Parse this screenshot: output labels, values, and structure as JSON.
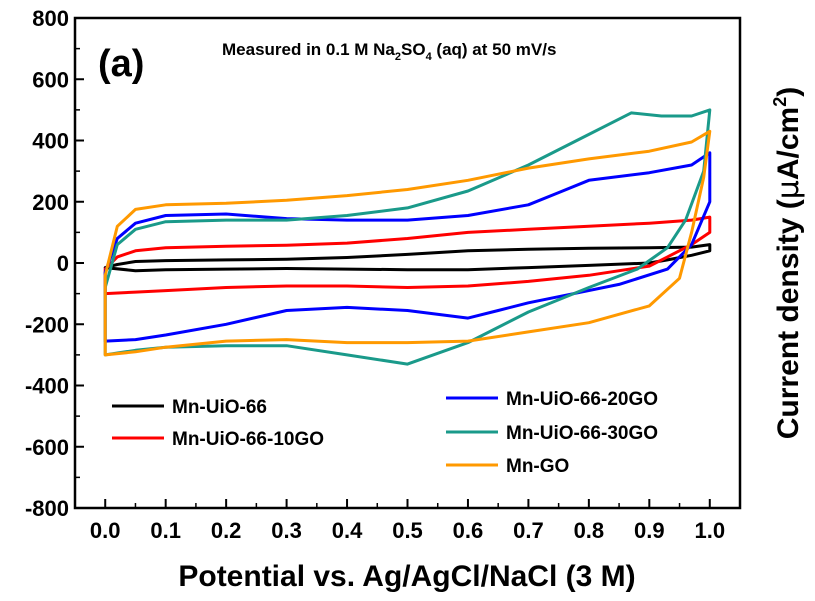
{
  "chart_data": {
    "type": "line",
    "panel_label": "(a)",
    "annotation": {
      "prefix": "Measured in 0.1 M Na",
      "sub1": "2",
      "mid": "SO",
      "sub2": "4",
      "suffix": " (aq) at 50 mV/s"
    },
    "xlabel": "Potential vs. Ag/AgCl/NaCl (3 M)",
    "ylabel": {
      "main": "Current density (",
      "mu": "μ",
      "unit": "A/cm",
      "sup": "2",
      "close": ")"
    },
    "xlim": [
      -0.05,
      1.05
    ],
    "ylim": [
      -800,
      800
    ],
    "x_ticks": [
      "0.0",
      "0.1",
      "0.2",
      "0.3",
      "0.4",
      "0.5",
      "0.6",
      "0.7",
      "0.8",
      "0.9",
      "1.0"
    ],
    "y_ticks": [
      "800",
      "600",
      "400",
      "200",
      "0",
      "-200",
      "-400",
      "-600",
      "-800"
    ],
    "legend_placement": "bottom",
    "series": [
      {
        "name": "Mn-UiO-66",
        "color": "#000000",
        "points": [
          [
            0.0,
            -15
          ],
          [
            0.02,
            -5
          ],
          [
            0.05,
            5
          ],
          [
            0.1,
            8
          ],
          [
            0.2,
            10
          ],
          [
            0.3,
            12
          ],
          [
            0.4,
            18
          ],
          [
            0.5,
            28
          ],
          [
            0.6,
            40
          ],
          [
            0.7,
            45
          ],
          [
            0.8,
            48
          ],
          [
            0.9,
            50
          ],
          [
            0.97,
            52
          ],
          [
            1.0,
            60
          ],
          [
            1.0,
            40
          ],
          [
            0.97,
            25
          ],
          [
            0.93,
            10
          ],
          [
            0.9,
            0
          ],
          [
            0.8,
            -8
          ],
          [
            0.7,
            -15
          ],
          [
            0.6,
            -22
          ],
          [
            0.5,
            -22
          ],
          [
            0.4,
            -20
          ],
          [
            0.3,
            -18
          ],
          [
            0.2,
            -20
          ],
          [
            0.1,
            -22
          ],
          [
            0.05,
            -25
          ],
          [
            0.0,
            -15
          ]
        ]
      },
      {
        "name": "Mn-UiO-66-10GO",
        "color": "#ff0000",
        "points": [
          [
            0.0,
            -20
          ],
          [
            0.02,
            20
          ],
          [
            0.05,
            40
          ],
          [
            0.1,
            50
          ],
          [
            0.2,
            55
          ],
          [
            0.3,
            58
          ],
          [
            0.4,
            65
          ],
          [
            0.5,
            80
          ],
          [
            0.6,
            100
          ],
          [
            0.7,
            110
          ],
          [
            0.8,
            120
          ],
          [
            0.9,
            130
          ],
          [
            0.97,
            140
          ],
          [
            1.0,
            150
          ],
          [
            1.0,
            100
          ],
          [
            0.97,
            60
          ],
          [
            0.93,
            20
          ],
          [
            0.9,
            -10
          ],
          [
            0.8,
            -40
          ],
          [
            0.7,
            -60
          ],
          [
            0.6,
            -75
          ],
          [
            0.5,
            -80
          ],
          [
            0.4,
            -75
          ],
          [
            0.3,
            -75
          ],
          [
            0.2,
            -80
          ],
          [
            0.1,
            -90
          ],
          [
            0.05,
            -95
          ],
          [
            0.0,
            -100
          ]
        ]
      },
      {
        "name": "Mn-UiO-66-20GO",
        "color": "#0000ff",
        "points": [
          [
            0.0,
            -30
          ],
          [
            0.02,
            80
          ],
          [
            0.05,
            130
          ],
          [
            0.1,
            155
          ],
          [
            0.2,
            160
          ],
          [
            0.3,
            145
          ],
          [
            0.4,
            140
          ],
          [
            0.5,
            140
          ],
          [
            0.6,
            155
          ],
          [
            0.7,
            190
          ],
          [
            0.75,
            230
          ],
          [
            0.8,
            270
          ],
          [
            0.9,
            295
          ],
          [
            0.97,
            320
          ],
          [
            1.0,
            360
          ],
          [
            1.0,
            200
          ],
          [
            0.97,
            60
          ],
          [
            0.93,
            -20
          ],
          [
            0.85,
            -70
          ],
          [
            0.75,
            -110
          ],
          [
            0.7,
            -130
          ],
          [
            0.65,
            -155
          ],
          [
            0.6,
            -180
          ],
          [
            0.5,
            -155
          ],
          [
            0.4,
            -145
          ],
          [
            0.3,
            -155
          ],
          [
            0.2,
            -200
          ],
          [
            0.1,
            -235
          ],
          [
            0.05,
            -250
          ],
          [
            0.0,
            -255
          ]
        ]
      },
      {
        "name": "Mn-UiO-66-30GO",
        "color": "#1a9a8a",
        "points": [
          [
            0.0,
            -80
          ],
          [
            0.02,
            60
          ],
          [
            0.05,
            110
          ],
          [
            0.1,
            135
          ],
          [
            0.2,
            140
          ],
          [
            0.3,
            140
          ],
          [
            0.4,
            155
          ],
          [
            0.5,
            180
          ],
          [
            0.6,
            235
          ],
          [
            0.7,
            320
          ],
          [
            0.8,
            420
          ],
          [
            0.87,
            490
          ],
          [
            0.92,
            480
          ],
          [
            0.97,
            480
          ],
          [
            1.0,
            500
          ],
          [
            0.99,
            300
          ],
          [
            0.96,
            140
          ],
          [
            0.93,
            50
          ],
          [
            0.88,
            -20
          ],
          [
            0.8,
            -80
          ],
          [
            0.7,
            -160
          ],
          [
            0.6,
            -260
          ],
          [
            0.5,
            -330
          ],
          [
            0.4,
            -300
          ],
          [
            0.3,
            -270
          ],
          [
            0.2,
            -270
          ],
          [
            0.1,
            -275
          ],
          [
            0.05,
            -285
          ],
          [
            0.0,
            -300
          ]
        ]
      },
      {
        "name": "Mn-GO",
        "color": "#ff9900",
        "points": [
          [
            0.0,
            -40
          ],
          [
            0.02,
            120
          ],
          [
            0.05,
            175
          ],
          [
            0.1,
            190
          ],
          [
            0.2,
            195
          ],
          [
            0.3,
            205
          ],
          [
            0.4,
            220
          ],
          [
            0.5,
            240
          ],
          [
            0.6,
            270
          ],
          [
            0.7,
            310
          ],
          [
            0.8,
            340
          ],
          [
            0.9,
            365
          ],
          [
            0.97,
            395
          ],
          [
            1.0,
            430
          ],
          [
            0.99,
            280
          ],
          [
            0.97,
            100
          ],
          [
            0.95,
            -50
          ],
          [
            0.9,
            -140
          ],
          [
            0.8,
            -195
          ],
          [
            0.7,
            -225
          ],
          [
            0.6,
            -255
          ],
          [
            0.5,
            -260
          ],
          [
            0.4,
            -260
          ],
          [
            0.3,
            -250
          ],
          [
            0.2,
            -255
          ],
          [
            0.1,
            -275
          ],
          [
            0.05,
            -290
          ],
          [
            0.0,
            -300
          ]
        ]
      }
    ]
  }
}
